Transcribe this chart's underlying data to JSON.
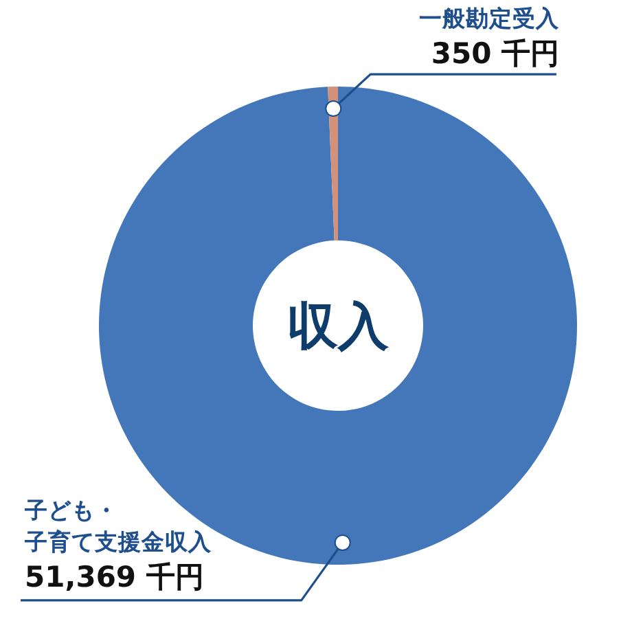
{
  "chart_data": {
    "type": "donut",
    "title": "収入",
    "categories": [
      "子ども・子育て支援金収入",
      "一般勘定受入"
    ],
    "values": [
      51369,
      350
    ],
    "colors": [
      "#4477b9",
      "#d4917a"
    ],
    "value_labels": [
      "51,369 千円",
      "350 千円"
    ]
  }
}
